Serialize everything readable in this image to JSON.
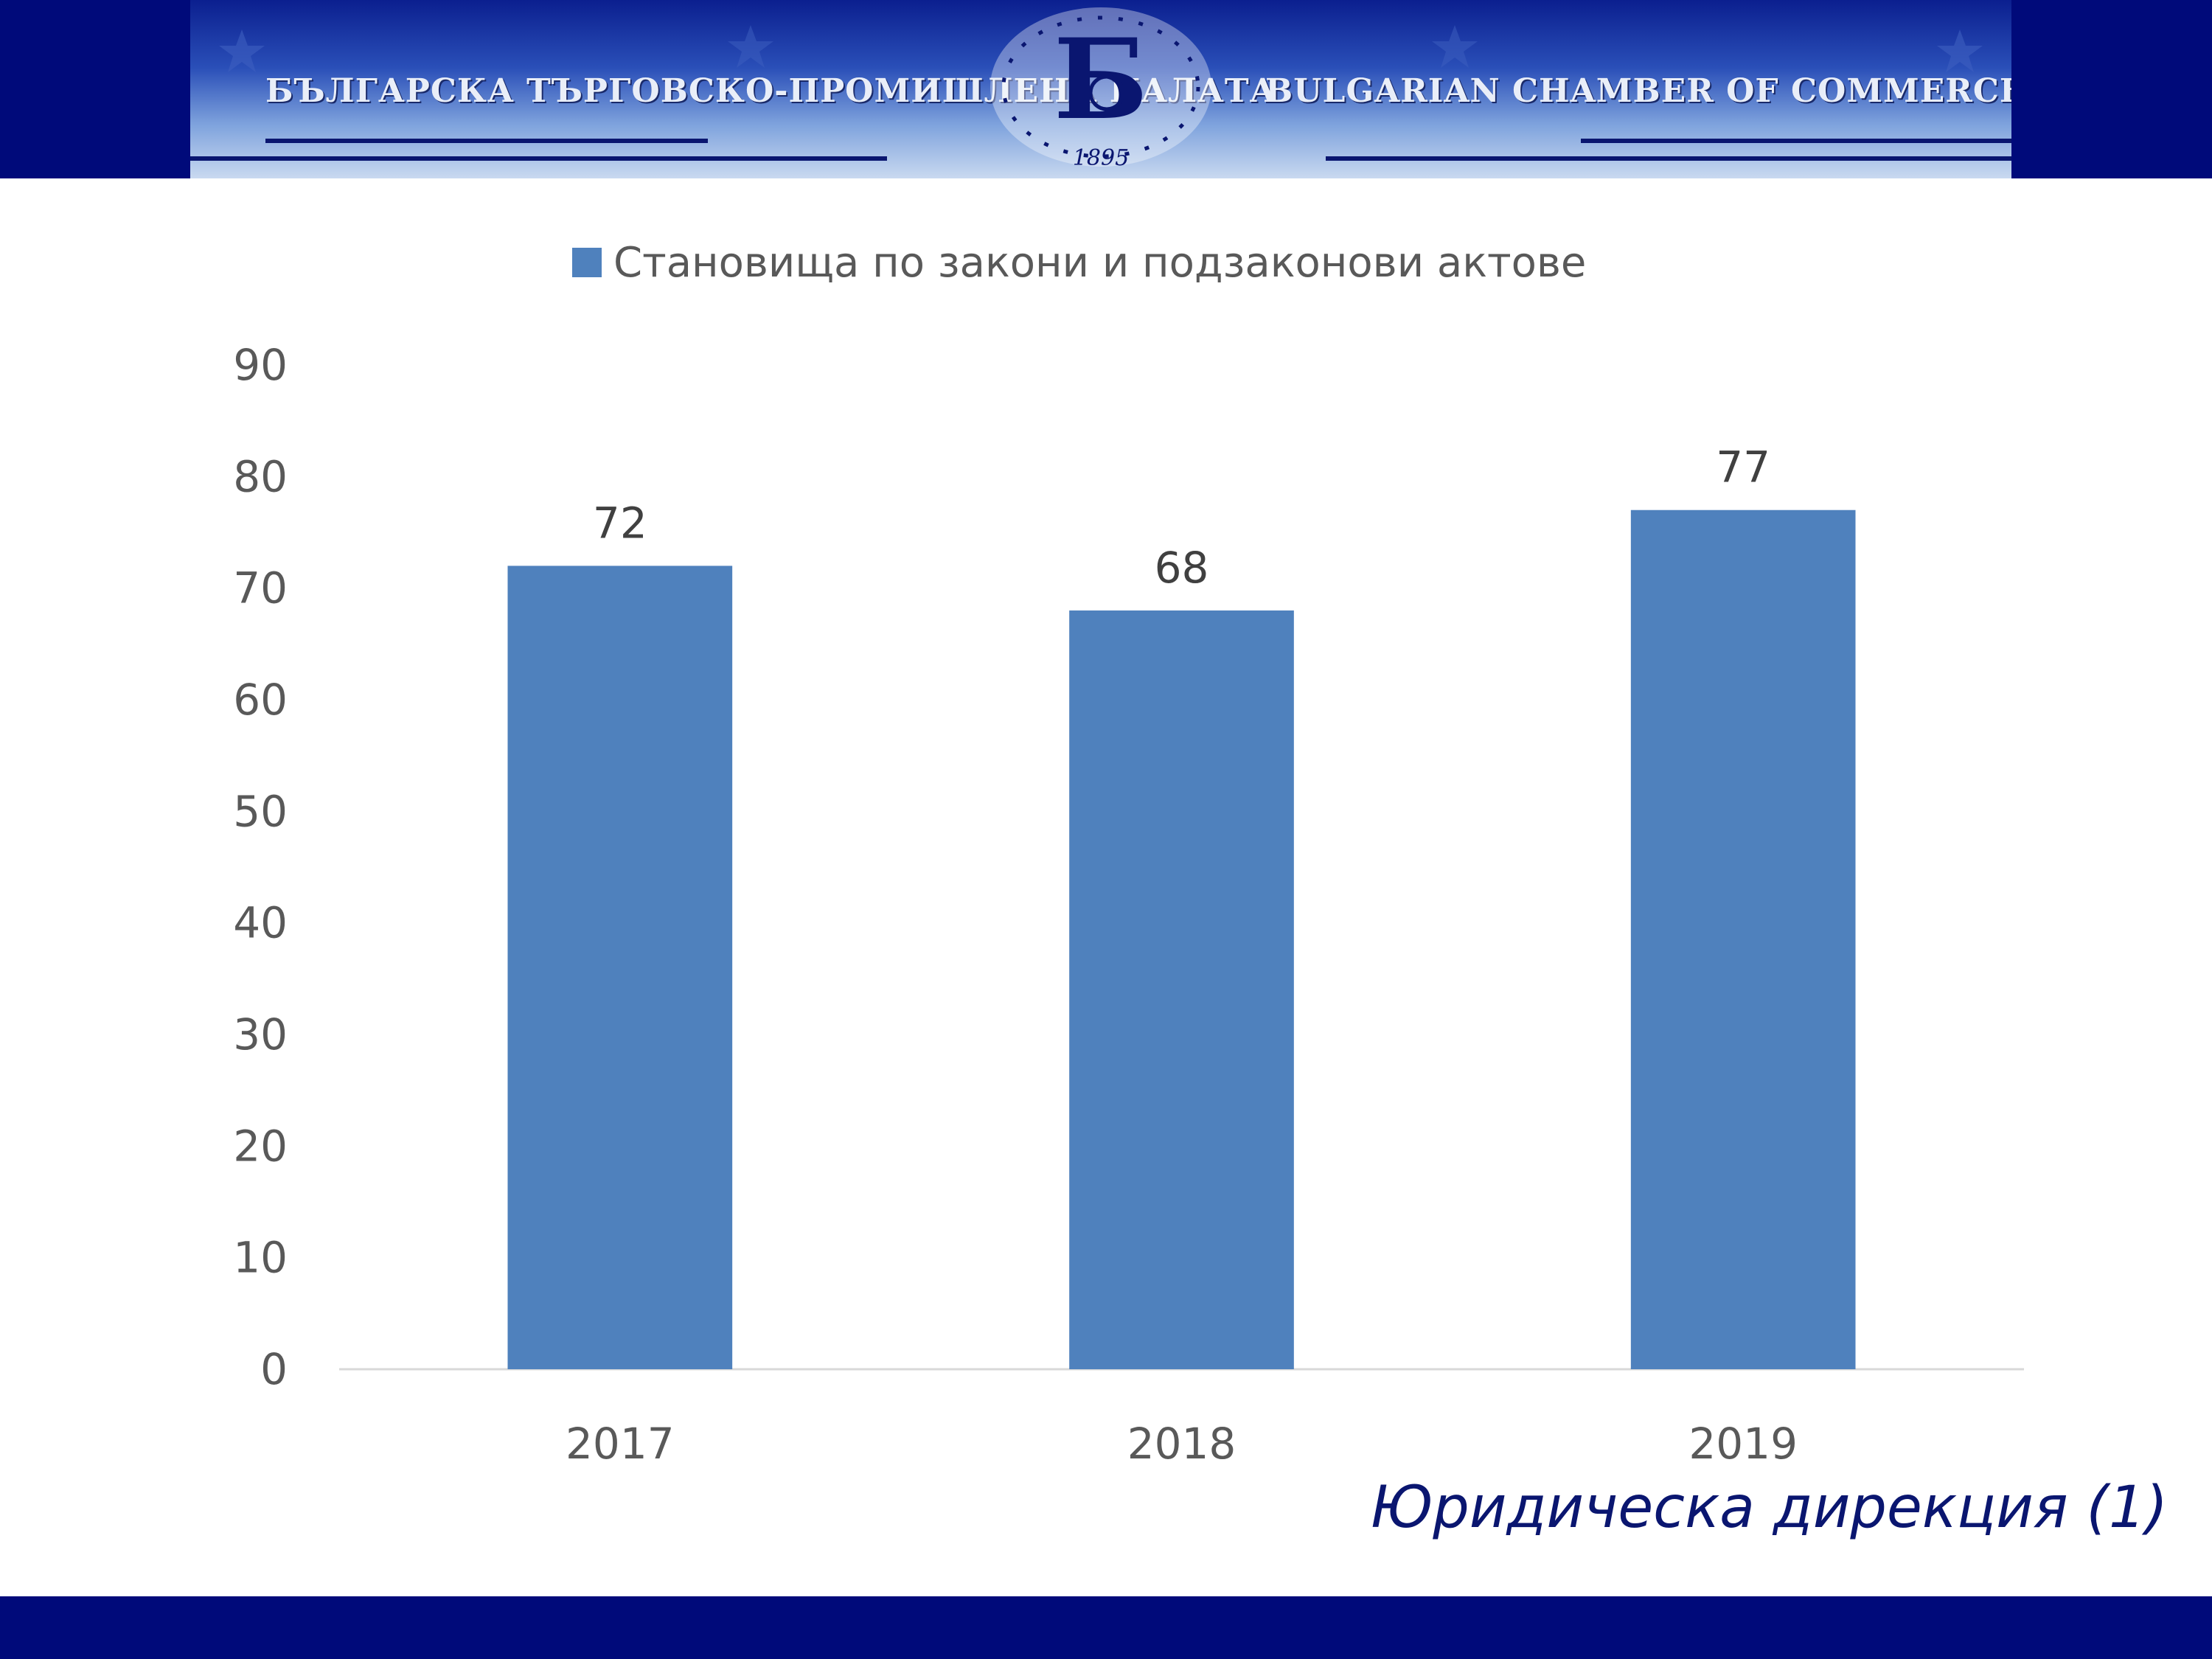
{
  "header": {
    "title_bg": "БЪЛГАРСКА ТЪРГОВСКО-ПРОМИШЛЕНА ПАЛАТА",
    "title_en": "BULGARIAN CHAMBER OF COMMERCE AND INDUSTRY",
    "logo_year": "1895",
    "logo_letter": "Б"
  },
  "slide_subtitle": "Юридическа дирекция (1)",
  "colors": {
    "bar": "#4f81bd",
    "navy": "#000a7a",
    "subtitle": "#0a1670",
    "text": "#595959"
  },
  "chart_data": {
    "type": "bar",
    "categories": [
      "2017",
      "2018",
      "2019"
    ],
    "series": [
      {
        "name": "Становища по закони и подзаконови актове",
        "values": [
          72,
          68,
          77
        ]
      }
    ],
    "ylim": [
      0,
      90
    ],
    "yticks": [
      0,
      10,
      20,
      30,
      40,
      50,
      60,
      70,
      80,
      90
    ],
    "data_labels": true,
    "grid": false,
    "legend_position": "top"
  }
}
